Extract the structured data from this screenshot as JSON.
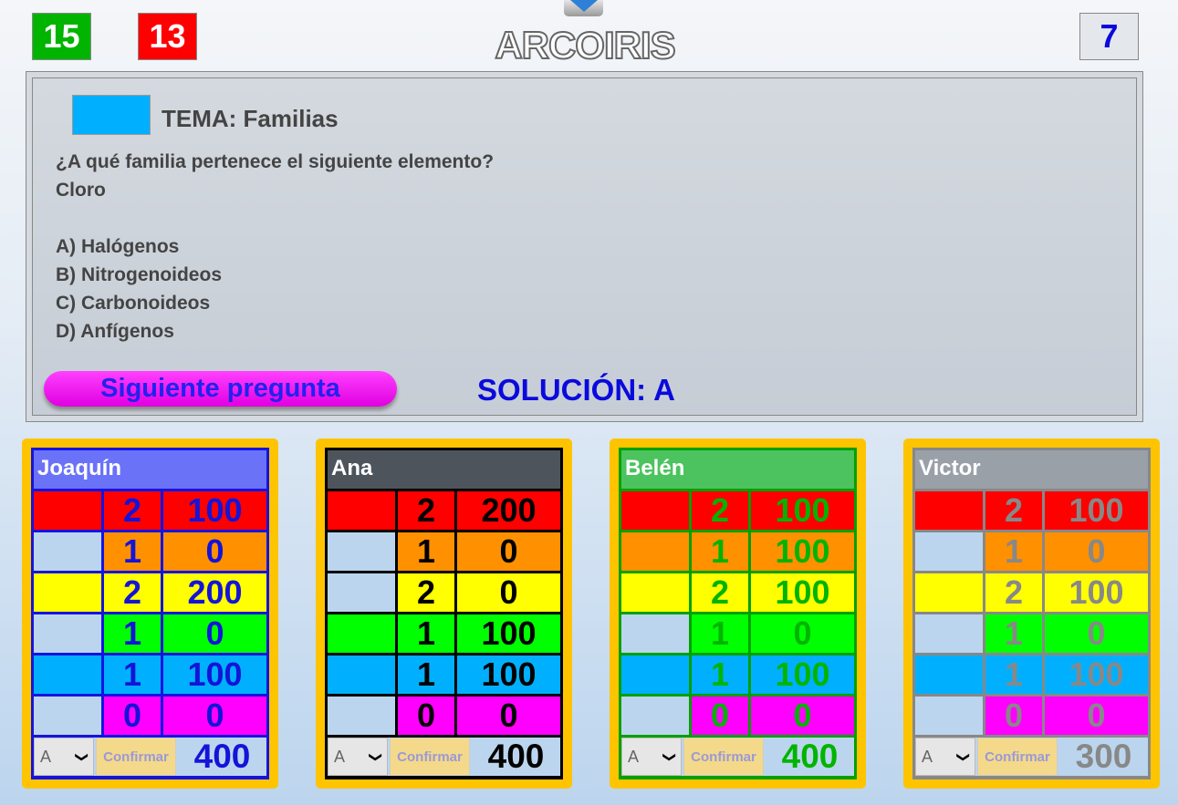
{
  "header": {
    "score_green": "15",
    "score_red": "13",
    "title": "ARCOIRIS",
    "score_right": "7",
    "toggle_icon": "caret-down-icon"
  },
  "colors": {
    "red": "#ff0000",
    "orange": "#ff9000",
    "yellow": "#ffff00",
    "green": "#00ff00",
    "blue": "#00b0ff",
    "magenta": "#ff00ff",
    "empty": "#bcd5ee",
    "card": "#ffc400"
  },
  "question": {
    "topic_color": "#00b0ff",
    "topic": "TEMA: Familias",
    "prompt": "¿A qué familia pertenece el siguiente elemento?",
    "element": "Cloro",
    "options": [
      "A) Halógenos",
      "B) Nitrogenoideos",
      "C) Carbonoideos",
      "D) Anfígenos"
    ],
    "next_label": "Siguiente pregunta",
    "solution": "SOLUCIÓN: A"
  },
  "players": [
    {
      "name": "Joaquín",
      "text_color": "#1414d8",
      "border": "#1414e0",
      "header_bg": "#6a72f8",
      "select": "A",
      "confirm": "Confirmar",
      "total": "400",
      "rows": [
        {
          "color": "red",
          "filled": true,
          "count": "2",
          "points": "100"
        },
        {
          "color": "orange",
          "filled": false,
          "count": "1",
          "points": "0"
        },
        {
          "color": "yellow",
          "filled": true,
          "count": "2",
          "points": "200"
        },
        {
          "color": "green",
          "filled": false,
          "count": "1",
          "points": "0"
        },
        {
          "color": "blue",
          "filled": true,
          "count": "1",
          "points": "100"
        },
        {
          "color": "magenta",
          "filled": false,
          "count": "0",
          "points": "0"
        }
      ]
    },
    {
      "name": "Ana",
      "text_color": "#000000",
      "border": "#000000",
      "header_bg": "#4e545c",
      "select": "A",
      "confirm": "Confirmar",
      "total": "400",
      "rows": [
        {
          "color": "red",
          "filled": true,
          "count": "2",
          "points": "200"
        },
        {
          "color": "orange",
          "filled": false,
          "count": "1",
          "points": "0"
        },
        {
          "color": "yellow",
          "filled": false,
          "count": "2",
          "points": "0"
        },
        {
          "color": "green",
          "filled": true,
          "count": "1",
          "points": "100"
        },
        {
          "color": "blue",
          "filled": true,
          "count": "1",
          "points": "100"
        },
        {
          "color": "magenta",
          "filled": false,
          "count": "0",
          "points": "0"
        }
      ]
    },
    {
      "name": "Belén",
      "text_color": "#00b400",
      "border": "#00a000",
      "header_bg": "#4cc35e",
      "select": "A",
      "confirm": "Confirmar",
      "total": "400",
      "rows": [
        {
          "color": "red",
          "filled": true,
          "count": "2",
          "points": "100"
        },
        {
          "color": "orange",
          "filled": true,
          "count": "1",
          "points": "100"
        },
        {
          "color": "yellow",
          "filled": true,
          "count": "2",
          "points": "100"
        },
        {
          "color": "green",
          "filled": false,
          "count": "1",
          "points": "0"
        },
        {
          "color": "blue",
          "filled": true,
          "count": "1",
          "points": "100"
        },
        {
          "color": "magenta",
          "filled": false,
          "count": "0",
          "points": "0"
        }
      ]
    },
    {
      "name": "Victor",
      "text_color": "#888888",
      "border": "#888888",
      "header_bg": "#9aa0a8",
      "select": "A",
      "confirm": "Confirmar",
      "total": "300",
      "rows": [
        {
          "color": "red",
          "filled": true,
          "count": "2",
          "points": "100"
        },
        {
          "color": "orange",
          "filled": false,
          "count": "1",
          "points": "0"
        },
        {
          "color": "yellow",
          "filled": true,
          "count": "2",
          "points": "100"
        },
        {
          "color": "green",
          "filled": false,
          "count": "1",
          "points": "0"
        },
        {
          "color": "blue",
          "filled": true,
          "count": "1",
          "points": "100"
        },
        {
          "color": "magenta",
          "filled": false,
          "count": "0",
          "points": "0"
        }
      ]
    }
  ]
}
